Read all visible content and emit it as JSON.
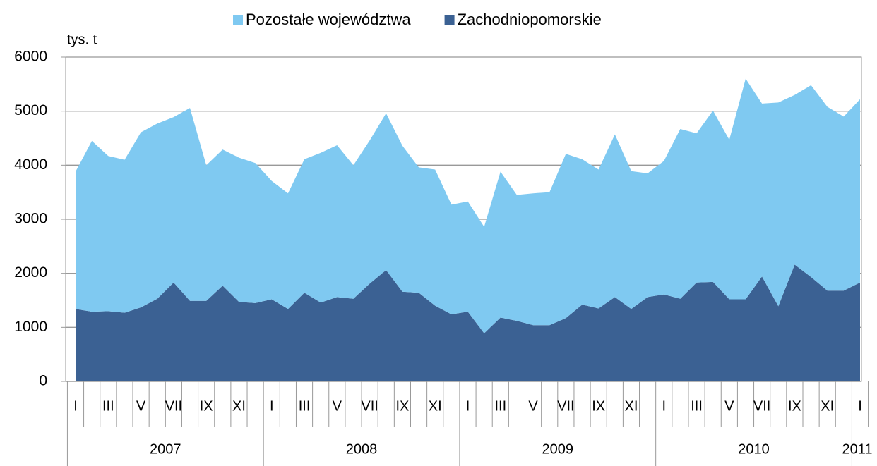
{
  "chart_data": {
    "type": "stacked_area",
    "y_unit_label": "tys. t",
    "categories": [
      "I",
      null,
      "III",
      null,
      "V",
      null,
      "VII",
      null,
      "IX",
      null,
      "XI",
      null,
      "I",
      null,
      "III",
      null,
      "V",
      null,
      "VII",
      null,
      "IX",
      null,
      "XI",
      null,
      "I",
      null,
      "III",
      null,
      "V",
      null,
      "VII",
      null,
      "IX",
      null,
      "XI",
      null,
      "I",
      null,
      "III",
      null,
      "V",
      null,
      "VII",
      null,
      "IX",
      null,
      "XI",
      null,
      "I"
    ],
    "years": [
      "2007",
      "2008",
      "2009",
      "2010",
      "2011"
    ],
    "series": [
      {
        "name": "Pozostałe województwa",
        "color": "#7fc9f1",
        "values": [
          2540,
          3160,
          2870,
          2830,
          3240,
          3240,
          3060,
          3570,
          2510,
          2520,
          2670,
          2590,
          2190,
          2140,
          2470,
          2770,
          2810,
          2470,
          2650,
          2900,
          2700,
          2320,
          2520,
          2030,
          2040,
          1970,
          2700,
          2330,
          2440,
          2460,
          3040,
          2690,
          2570,
          3010,
          2550,
          2290,
          2470,
          3140,
          2760,
          3170,
          2950,
          4080,
          3200,
          3770,
          3140,
          3550,
          3400,
          3220,
          3390
        ]
      },
      {
        "name": "Zachodniopomorskie",
        "color": "#3b6193",
        "values": [
          1340,
          1290,
          1300,
          1270,
          1370,
          1530,
          1830,
          1490,
          1490,
          1770,
          1470,
          1450,
          1520,
          1340,
          1640,
          1460,
          1560,
          1530,
          1810,
          2060,
          1660,
          1640,
          1400,
          1240,
          1290,
          890,
          1180,
          1120,
          1040,
          1040,
          1170,
          1420,
          1350,
          1560,
          1340,
          1560,
          1610,
          1530,
          1830,
          1840,
          1520,
          1520,
          1940,
          1390,
          2160,
          1930,
          1680,
          1680,
          1830
        ]
      }
    ],
    "ylim": [
      0,
      6000
    ],
    "yticks": [
      0,
      1000,
      2000,
      3000,
      4000,
      5000,
      6000
    ],
    "grid": true,
    "legend": "top"
  }
}
